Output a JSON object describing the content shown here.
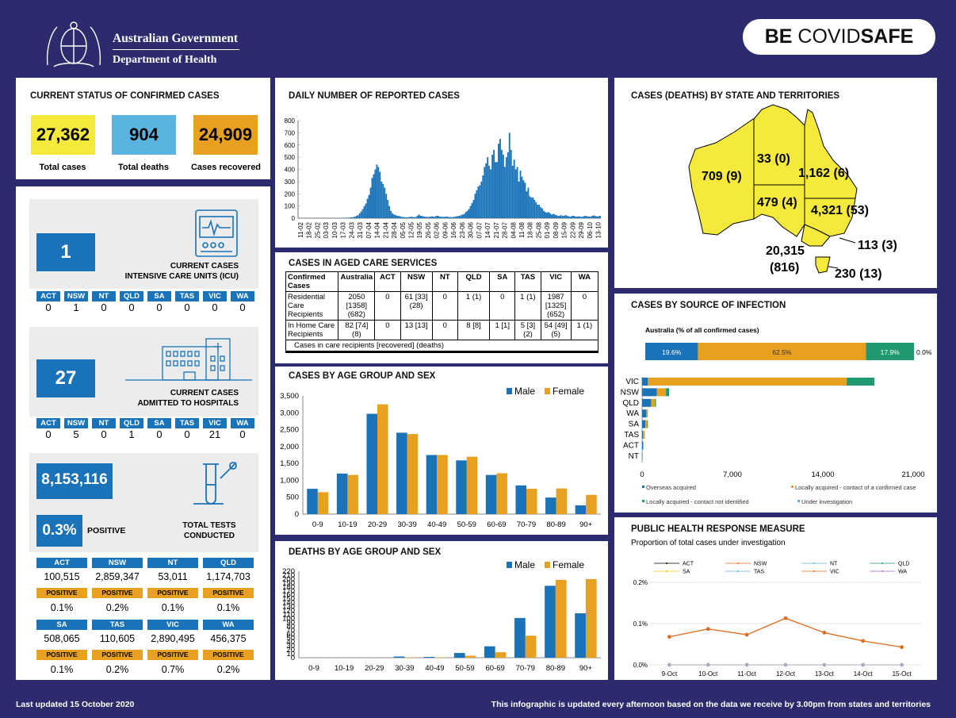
{
  "header": {
    "gov_line1": "Australian Government",
    "gov_line2": "Department of Health",
    "badge_be": "BE",
    "badge_covid": "COVID",
    "badge_safe": "SAFE"
  },
  "status": {
    "title": "CURRENT STATUS OF CONFIRMED CASES",
    "total_cases": "27,362",
    "total_cases_label": "Total cases",
    "total_deaths": "904",
    "total_deaths_label": "Total deaths",
    "recovered": "24,909",
    "recovered_label": "Cases recovered"
  },
  "icu": {
    "count": "1",
    "label1": "CURRENT CASES",
    "label2": "INTENSIVE CARE UNITS (ICU)",
    "states": [
      "ACT",
      "NSW",
      "NT",
      "QLD",
      "SA",
      "TAS",
      "VIC",
      "WA"
    ],
    "values": [
      "0",
      "1",
      "0",
      "0",
      "0",
      "0",
      "0",
      "0"
    ]
  },
  "hospital": {
    "count": "27",
    "label1": "CURRENT CASES",
    "label2": "ADMITTED TO HOSPITALS",
    "states": [
      "ACT",
      "NSW",
      "NT",
      "QLD",
      "SA",
      "TAS",
      "VIC",
      "WA"
    ],
    "values": [
      "0",
      "5",
      "0",
      "1",
      "0",
      "0",
      "21",
      "0"
    ]
  },
  "tests": {
    "total": "8,153,116",
    "positive_rate": "0.3%",
    "positive_label": "POSITIVE",
    "label1": "TOTAL TESTS",
    "label2": "CONDUCTED",
    "positive_tag": "POSITIVE",
    "row1": [
      {
        "state": "ACT",
        "tests": "100,515",
        "pct": "0.1%"
      },
      {
        "state": "NSW",
        "tests": "2,859,347",
        "pct": "0.2%"
      },
      {
        "state": "NT",
        "tests": "53,011",
        "pct": "0.1%"
      },
      {
        "state": "QLD",
        "tests": "1,174,703",
        "pct": "0.1%"
      }
    ],
    "row2": [
      {
        "state": "SA",
        "tests": "508,065",
        "pct": "0.1%"
      },
      {
        "state": "TAS",
        "tests": "110,605",
        "pct": "0.2%"
      },
      {
        "state": "VIC",
        "tests": "2,890,495",
        "pct": "0.7%"
      },
      {
        "state": "WA",
        "tests": "456,375",
        "pct": "0.2%"
      }
    ]
  },
  "daily": {
    "title": "DAILY NUMBER OF REPORTED CASES",
    "x_labels": [
      "11-02",
      "18-02",
      "25-02",
      "03-03",
      "10-03",
      "17-03",
      "24-03",
      "31-03",
      "07-04",
      "14-04",
      "21-04",
      "28-04",
      "05-05",
      "12-05",
      "19-05",
      "26-05",
      "02-06",
      "09-06",
      "16-06",
      "23-06",
      "30-06",
      "07-07",
      "14-07",
      "21-07",
      "28-07",
      "04-08",
      "11-08",
      "18-08",
      "25-08",
      "01-09",
      "08-09",
      "15-09",
      "22-09",
      "29-09",
      "06-10",
      "13-10"
    ]
  },
  "aged": {
    "title": "CASES IN AGED CARE SERVICES",
    "header": [
      "Confirmed Cases",
      "Australia",
      "ACT",
      "NSW",
      "NT",
      "QLD",
      "SA",
      "TAS",
      "VIC",
      "WA"
    ],
    "row1": [
      "Residential Care Recipients",
      "2050 [1358] (682)",
      "0",
      "61 [33] (28)",
      "0",
      "1 (1)",
      "0",
      "1 (1)",
      "1987 [1325] (652)",
      "0"
    ],
    "row2": [
      "In Home Care Recipients",
      "82 [74] (8)",
      "0",
      "13 [13]",
      "0",
      "8 [8]",
      "1 [1]",
      "5 [3] (2)",
      "54 [49] (5)",
      "1 (1)"
    ],
    "footnote": "Cases in care recipients [recovered] (deaths)"
  },
  "age_sex": {
    "title": "CASES BY AGE GROUP AND SEX",
    "male_label": "Male",
    "female_label": "Female",
    "y_ticks": [
      "0",
      "500",
      "1,000",
      "1,500",
      "2,000",
      "2,500",
      "3,000",
      "3,500"
    ]
  },
  "deaths": {
    "title": "DEATHS BY AGE GROUP AND SEX",
    "male_label": "Male",
    "female_label": "Female",
    "y_ticks": [
      "0",
      "10",
      "20",
      "30",
      "40",
      "50",
      "60",
      "70",
      "80",
      "90",
      "100",
      "110",
      "120",
      "130",
      "140",
      "150",
      "160",
      "170",
      "180",
      "190",
      "200",
      "210",
      "220"
    ]
  },
  "map": {
    "title": "CASES (DEATHS) BY STATE AND TERRITORIES",
    "wa": "709 (9)",
    "nt": "33 (0)",
    "qld": "1,162 (6)",
    "sa": "479 (4)",
    "nsw": "4,321 (53)",
    "act": "113 (3)",
    "vic1": "20,315",
    "vic2": "(816)",
    "tas": "230 (13)"
  },
  "source": {
    "title": "CASES BY SOURCE OF INFECTION",
    "subtitle": "Australia (% of all confirmed cases)",
    "pct": [
      "19.6%",
      "62.5%",
      "17.9%",
      "0.0%"
    ],
    "states": [
      "VIC",
      "NSW",
      "QLD",
      "WA",
      "SA",
      "TAS",
      "ACT",
      "NT"
    ],
    "x_ticks": [
      "0",
      "7,000",
      "14,000",
      "21,000"
    ],
    "legend": [
      "Overseas acquired",
      "Locally acquired - contact of a confirmed case",
      "Locally acquired - contact not identified",
      "Under investigation"
    ]
  },
  "phrm": {
    "title": "PUBLIC HEALTH RESPONSE MEASURE",
    "subtitle": "Proportion of total cases under investigation",
    "legend": [
      "ACT",
      "NSW",
      "NT",
      "QLD",
      "SA",
      "TAS",
      "VIC",
      "WA"
    ],
    "y_ticks": [
      "0.0%",
      "0.1%",
      "0.2%"
    ],
    "x_labels": [
      "9-Oct",
      "10-Oct",
      "11-Oct",
      "12-Oct",
      "13-Oct",
      "14-Oct",
      "15-Oct"
    ]
  },
  "footer": {
    "updated": "Last updated 15 October 2020",
    "note": "This infographic is updated every afternoon based on the data we receive by 3.00pm from states and territories"
  },
  "colors": {
    "navy": "#2b2b6e",
    "blue": "#1a73b8",
    "orange": "#e8a020",
    "teal": "#1f9a6f",
    "yellow": "#f5ea3c",
    "sky": "#5ab4e0",
    "nsw_line": "#e06a1e"
  },
  "chart_data": [
    {
      "type": "bar",
      "title": "DAILY NUMBER OF REPORTED CASES",
      "ylim": [
        0,
        800
      ],
      "y_ticks": [
        0,
        100,
        200,
        300,
        400,
        500,
        600,
        700,
        800
      ],
      "x_start": "11-02",
      "x_end": "15-10",
      "values": [
        0,
        0,
        0,
        0,
        0,
        0,
        0,
        0,
        0,
        0,
        0,
        0,
        0,
        0,
        0,
        0,
        0,
        0,
        0,
        0,
        0,
        0,
        1,
        0,
        0,
        1,
        0,
        0,
        2,
        3,
        2,
        5,
        3,
        7,
        6,
        9,
        13,
        20,
        25,
        40,
        55,
        75,
        100,
        120,
        160,
        190,
        250,
        330,
        360,
        400,
        440,
        420,
        380,
        300,
        280,
        250,
        200,
        150,
        100,
        60,
        40,
        30,
        25,
        20,
        18,
        15,
        10,
        10,
        8,
        7,
        8,
        10,
        12,
        10,
        8,
        10,
        20,
        30,
        20,
        18,
        15,
        12,
        10,
        10,
        12,
        15,
        14,
        12,
        18,
        20,
        15,
        12,
        10,
        11,
        12,
        13,
        10,
        9,
        8,
        10,
        12,
        15,
        18,
        20,
        25,
        30,
        35,
        50,
        60,
        75,
        100,
        125,
        150,
        200,
        230,
        260,
        270,
        300,
        350,
        420,
        450,
        500,
        430,
        400,
        520,
        560,
        460,
        460,
        610,
        650,
        560,
        520,
        420,
        500,
        540,
        700,
        560,
        430,
        480,
        400,
        420,
        300,
        390,
        340,
        310,
        290,
        220,
        250,
        180,
        170,
        170,
        150,
        130,
        110,
        110,
        90,
        80,
        60,
        50,
        45,
        50,
        40,
        30,
        35,
        30,
        25,
        20,
        20,
        25,
        18,
        20,
        25,
        20,
        15,
        12,
        18,
        20,
        15,
        12,
        15,
        15,
        10,
        14,
        18,
        20,
        14,
        15,
        12,
        20,
        22,
        18,
        15,
        16,
        20
      ]
    },
    {
      "type": "bar",
      "title": "CASES BY AGE GROUP AND SEX",
      "categories": [
        "0-9",
        "10-19",
        "20-29",
        "30-39",
        "40-49",
        "50-59",
        "60-69",
        "70-79",
        "80-89",
        "90+"
      ],
      "series": [
        {
          "name": "Male",
          "values": [
            750,
            1200,
            2970,
            2410,
            1750,
            1590,
            1160,
            850,
            490,
            260
          ]
        },
        {
          "name": "Female",
          "values": [
            650,
            1160,
            3250,
            2370,
            1750,
            1700,
            1210,
            750,
            760,
            570
          ]
        }
      ],
      "ylim": [
        0,
        3500
      ]
    },
    {
      "type": "bar",
      "title": "DEATHS BY AGE GROUP AND SEX",
      "categories": [
        "0-9",
        "10-19",
        "20-29",
        "30-39",
        "40-49",
        "50-59",
        "60-69",
        "70-79",
        "80-89",
        "90+"
      ],
      "series": [
        {
          "name": "Male",
          "values": [
            0,
            0,
            0,
            3,
            2,
            12,
            29,
            101,
            183,
            113
          ]
        },
        {
          "name": "Female",
          "values": [
            0,
            0,
            0,
            1,
            1,
            5,
            14,
            56,
            198,
            200
          ]
        }
      ],
      "ylim": [
        0,
        220
      ]
    },
    {
      "type": "bar",
      "title": "CASES BY SOURCE OF INFECTION",
      "stacked": true,
      "horizontal": true,
      "categories": [
        "VIC",
        "NSW",
        "QLD",
        "WA",
        "SA",
        "TAS",
        "ACT",
        "NT"
      ],
      "series": [
        {
          "name": "Overseas acquired",
          "values": [
            450,
            1150,
            700,
            330,
            250,
            80,
            80,
            30
          ]
        },
        {
          "name": "Locally acquired - contact of a confirmed case",
          "values": [
            15400,
            700,
            300,
            90,
            150,
            100,
            25,
            5
          ]
        },
        {
          "name": "Locally acquired - contact not identified",
          "values": [
            2150,
            250,
            80,
            20,
            50,
            20,
            5,
            2
          ]
        },
        {
          "name": "Under investigation",
          "values": [
            0,
            0,
            0,
            0,
            0,
            0,
            0,
            0
          ]
        }
      ],
      "xlim": [
        0,
        21000
      ]
    },
    {
      "type": "line",
      "title": "PUBLIC HEALTH RESPONSE MEASURE",
      "categories": [
        "9-Oct",
        "10-Oct",
        "11-Oct",
        "12-Oct",
        "13-Oct",
        "14-Oct",
        "15-Oct"
      ],
      "series": [
        {
          "name": "ACT",
          "values": [
            0,
            0,
            0,
            0,
            0,
            0,
            0
          ]
        },
        {
          "name": "NSW",
          "values": [
            0.068,
            0.087,
            0.073,
            0.113,
            0.078,
            0.058,
            0.043
          ]
        },
        {
          "name": "NT",
          "values": [
            0,
            0,
            0,
            0,
            0,
            0,
            0
          ]
        },
        {
          "name": "QLD",
          "values": [
            0,
            0,
            0,
            0,
            0,
            0,
            0
          ]
        },
        {
          "name": "SA",
          "values": [
            0,
            0,
            0,
            0,
            0,
            0,
            0
          ]
        },
        {
          "name": "TAS",
          "values": [
            0,
            0,
            0,
            0,
            0,
            0,
            0
          ]
        },
        {
          "name": "VIC",
          "values": [
            0,
            0,
            0,
            0,
            0,
            0,
            0
          ]
        },
        {
          "name": "WA",
          "values": [
            0,
            0,
            0,
            0,
            0,
            0,
            0
          ]
        }
      ],
      "ylim": [
        0,
        0.2
      ]
    }
  ]
}
